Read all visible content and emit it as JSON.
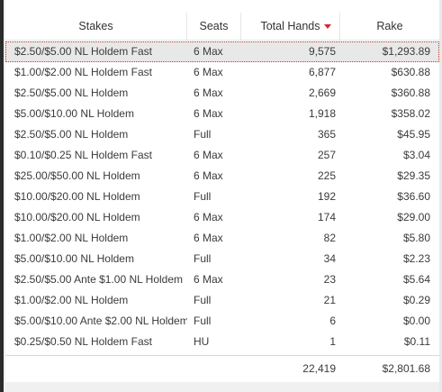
{
  "table": {
    "columns": [
      {
        "label": "Stakes"
      },
      {
        "label": "Seats"
      },
      {
        "label": "Total Hands"
      },
      {
        "label": "Rake"
      }
    ],
    "sorted_column": "Total Hands",
    "sort_direction": "descending",
    "sort_color": "#d9233b",
    "rows": [
      {
        "stakes": "$2.50/$5.00 NL Holdem Fast",
        "seats": "6 Max",
        "hands": "9,575",
        "rake": "$1,293.89"
      },
      {
        "stakes": "$1.00/$2.00 NL Holdem Fast",
        "seats": "6 Max",
        "hands": "6,877",
        "rake": "$630.88"
      },
      {
        "stakes": "$2.50/$5.00 NL Holdem",
        "seats": "6 Max",
        "hands": "2,669",
        "rake": "$360.88"
      },
      {
        "stakes": "$5.00/$10.00 NL Holdem",
        "seats": "6 Max",
        "hands": "1,918",
        "rake": "$358.02"
      },
      {
        "stakes": "$2.50/$5.00 NL Holdem",
        "seats": "Full",
        "hands": "365",
        "rake": "$45.95"
      },
      {
        "stakes": "$0.10/$0.25 NL Holdem Fast",
        "seats": "6 Max",
        "hands": "257",
        "rake": "$3.04"
      },
      {
        "stakes": "$25.00/$50.00 NL Holdem",
        "seats": "6 Max",
        "hands": "225",
        "rake": "$29.35"
      },
      {
        "stakes": "$10.00/$20.00 NL Holdem",
        "seats": "Full",
        "hands": "192",
        "rake": "$36.60"
      },
      {
        "stakes": "$10.00/$20.00 NL Holdem",
        "seats": "6 Max",
        "hands": "174",
        "rake": "$29.00"
      },
      {
        "stakes": "$1.00/$2.00 NL Holdem",
        "seats": "6 Max",
        "hands": "82",
        "rake": "$5.80"
      },
      {
        "stakes": "$5.00/$10.00 NL Holdem",
        "seats": "Full",
        "hands": "34",
        "rake": "$2.23"
      },
      {
        "stakes": "$2.50/$5.00 Ante $1.00 NL Holdem",
        "seats": "6 Max",
        "hands": "23",
        "rake": "$5.64"
      },
      {
        "stakes": "$1.00/$2.00 NL Holdem",
        "seats": "Full",
        "hands": "21",
        "rake": "$0.29"
      },
      {
        "stakes": "$5.00/$10.00 Ante $2.00 NL Holdem",
        "seats": "Full",
        "hands": "6",
        "rake": "$0.00"
      },
      {
        "stakes": "$0.25/$0.50 NL Holdem Fast",
        "seats": "HU",
        "hands": "1",
        "rake": "$0.11"
      }
    ],
    "totals": {
      "hands": "22,419",
      "rake": "$2,801.68"
    }
  }
}
